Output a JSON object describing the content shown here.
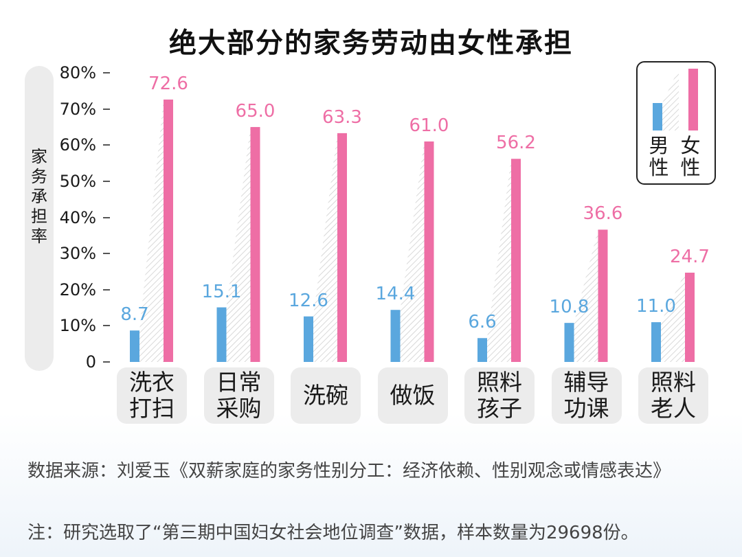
{
  "chart_data": {
    "type": "bar",
    "title": "绝大部分的家务劳动由女性承担",
    "ylabel": "家务承担率",
    "ylim": [
      0,
      80
    ],
    "yticks": [
      "80%",
      "70%",
      "60%",
      "50%",
      "40%",
      "30%",
      "20%",
      "10%",
      "0"
    ],
    "categories": [
      [
        "洗衣",
        "打扫"
      ],
      [
        "日常",
        "采购"
      ],
      [
        "洗碗"
      ],
      [
        "做饭"
      ],
      [
        "照料",
        "孩子"
      ],
      [
        "辅导",
        "功课"
      ],
      [
        "照料",
        "老人"
      ]
    ],
    "series": [
      {
        "name": "男性",
        "values": [
          8.7,
          15.1,
          12.6,
          14.4,
          6.6,
          10.8,
          11.0
        ],
        "labels": [
          "8.7",
          "15.1",
          "12.6",
          "14.4",
          "6.6",
          "10.8",
          "11.0"
        ]
      },
      {
        "name": "女性",
        "values": [
          72.6,
          65.0,
          63.3,
          61.0,
          56.2,
          36.6,
          24.7
        ],
        "labels": [
          "72.6",
          "65.0",
          "63.3",
          "61.0",
          "56.2",
          "36.6",
          "24.7"
        ]
      }
    ],
    "legend": {
      "male": [
        "男",
        "性"
      ],
      "female": [
        "女",
        "性"
      ]
    }
  },
  "colors": {
    "male": "#5aa7de",
    "female": "#ee6ea5",
    "hatch": "#c8c8c8"
  },
  "footer": {
    "source": "数据来源：刘爱玉《双薪家庭的家务性别分工：经济依赖、性别观念或情感表达》",
    "note": "注：研究选取了“第三期中国妇女社会地位调查”数据，样本数量为29698份。"
  }
}
